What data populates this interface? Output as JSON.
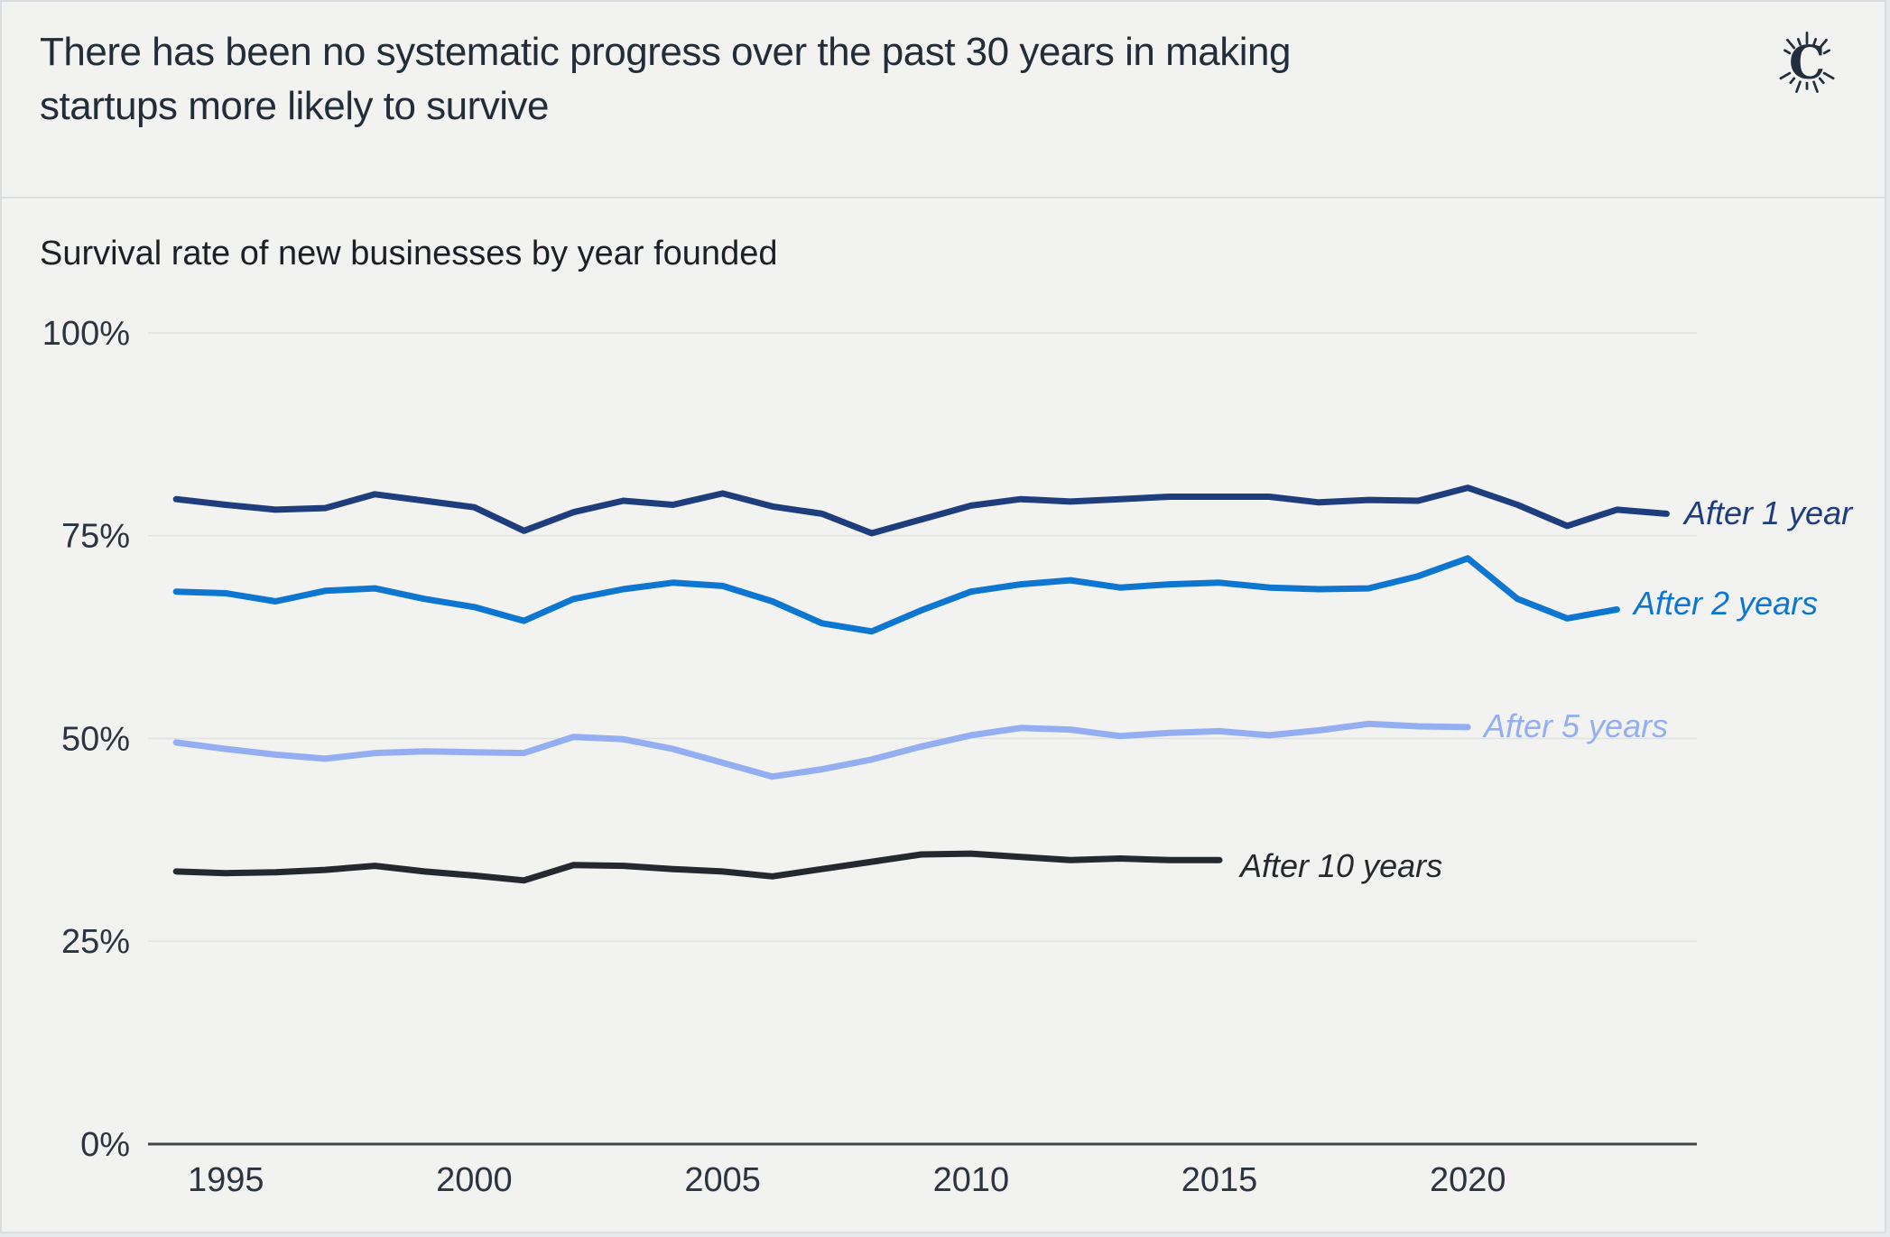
{
  "header": {
    "title": "There has been no systematic progress over the past 30 years in making startups more likely to survive",
    "logo_letter": "C"
  },
  "chart": {
    "subtitle": "Survival rate of new businesses by year founded"
  },
  "colors": {
    "background": "#f2f2f1",
    "title_text": "#232d3a",
    "axis_text": "#2c3440",
    "series_after_1_year": "#1e3d7d",
    "series_after_2_years": "#0d76d1",
    "series_after_5_years": "#93aff1",
    "series_after_10_years": "#25282e"
  },
  "chart_data": {
    "type": "line",
    "title": "There has been no systematic progress over the past 30 years in making startups more likely to survive",
    "subtitle": "Survival rate of new businesses by year founded",
    "xlabel": "",
    "ylabel": "",
    "ylim": [
      0,
      100
    ],
    "x_range_years": [
      1994,
      2024
    ],
    "grid": true,
    "legend_position": "end-of-line labels, right side",
    "y_ticks": [
      {
        "value": 100,
        "label": "100%"
      },
      {
        "value": 75,
        "label": "75%"
      },
      {
        "value": 50,
        "label": "50%"
      },
      {
        "value": 25,
        "label": "25%"
      },
      {
        "value": 0,
        "label": "0%"
      }
    ],
    "x_ticks": [
      {
        "year": 1995,
        "label": "1995"
      },
      {
        "year": 2000,
        "label": "2000"
      },
      {
        "year": 2005,
        "label": "2005"
      },
      {
        "year": 2010,
        "label": "2010"
      },
      {
        "year": 2015,
        "label": "2015"
      },
      {
        "year": 2020,
        "label": "2020"
      }
    ],
    "series": [
      {
        "name": "After 1 year",
        "color": "#1e3d7d",
        "start_year": 1994,
        "end_year": 2024,
        "values": [
          79.5,
          78.8,
          78.2,
          78.4,
          80.1,
          79.3,
          78.5,
          75.6,
          77.9,
          79.3,
          78.8,
          80.2,
          78.6,
          77.7,
          75.3,
          77.0,
          78.7,
          79.5,
          79.2,
          79.5,
          79.8,
          79.8,
          79.8,
          79.1,
          79.4,
          79.3,
          80.9,
          78.8,
          76.2,
          78.2,
          77.7
        ]
      },
      {
        "name": "After 2 years",
        "color": "#0d76d1",
        "start_year": 1994,
        "end_year": 2023,
        "values": [
          68.1,
          67.9,
          66.9,
          68.2,
          68.5,
          67.2,
          66.2,
          64.5,
          67.2,
          68.4,
          69.2,
          68.8,
          66.9,
          64.2,
          63.2,
          65.8,
          68.1,
          69.0,
          69.5,
          68.6,
          69.0,
          69.2,
          68.6,
          68.4,
          68.5,
          70.0,
          72.2,
          67.2,
          64.8,
          65.9
        ]
      },
      {
        "name": "After 5 years",
        "color": "#93aff1",
        "start_year": 1994,
        "end_year": 2020,
        "values": [
          49.5,
          48.7,
          48.0,
          47.5,
          48.2,
          48.4,
          48.3,
          48.2,
          50.2,
          49.9,
          48.7,
          47.0,
          45.3,
          46.2,
          47.4,
          49.0,
          50.4,
          51.3,
          51.1,
          50.3,
          50.7,
          50.9,
          50.4,
          51.0,
          51.8,
          51.5,
          51.4
        ]
      },
      {
        "name": "After 10 years",
        "color": "#25282e",
        "start_year": 1994,
        "end_year": 2015,
        "values": [
          33.6,
          33.4,
          33.5,
          33.8,
          34.3,
          33.6,
          33.1,
          32.5,
          34.4,
          34.3,
          33.9,
          33.6,
          33.0,
          33.9,
          34.8,
          35.7,
          35.8,
          35.4,
          35.0,
          35.2,
          35.0,
          35.0
        ]
      }
    ]
  }
}
